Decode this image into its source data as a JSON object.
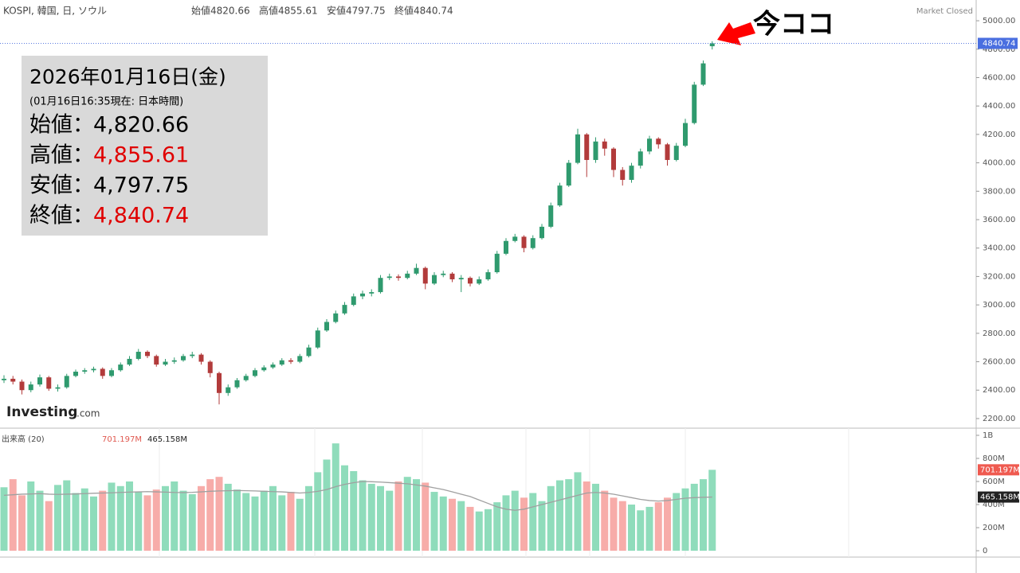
{
  "header": {
    "symbol": "KOSPI, 韓国, 日, ソウル",
    "items": [
      {
        "label": "始値",
        "value": "4820.66"
      },
      {
        "label": "高値",
        "value": "4855.61"
      },
      {
        "label": "安値",
        "value": "4797.75"
      },
      {
        "label": "終値",
        "value": "4840.74"
      }
    ],
    "status": "Market Closed"
  },
  "info_box": {
    "date": "2026年01月16日(金)",
    "note": "(01月16日16:35現在: 日本時間)",
    "rows": [
      {
        "label": "始値：",
        "value": "4,820.66",
        "color": "#000000"
      },
      {
        "label": "高値：",
        "value": "4,855.61",
        "color": "#e00000"
      },
      {
        "label": "安値：",
        "value": "4,797.75",
        "color": "#000000"
      },
      {
        "label": "終値：",
        "value": "4,840.74",
        "color": "#e00000"
      }
    ]
  },
  "annotation": "今ココ",
  "logo": {
    "main": "Investing",
    "suffix": ".com"
  },
  "chart_data": [
    {
      "type": "candlestick",
      "up_color": "#2f9a6e",
      "down_color": "#b23b3b",
      "current_value": 4840.74,
      "ylim": [
        2138,
        5146
      ],
      "yticks": [
        {
          "value": 2200,
          "label": "2200.00"
        },
        {
          "value": 2400,
          "label": "2400.00"
        },
        {
          "value": 2600,
          "label": "2600.00"
        },
        {
          "value": 2800,
          "label": "2800.00"
        },
        {
          "value": 3000,
          "label": "3000.00"
        },
        {
          "value": 3200,
          "label": "3200.00"
        },
        {
          "value": 3400,
          "label": "3400.00"
        },
        {
          "value": 3600,
          "label": "3600.00"
        },
        {
          "value": 3800,
          "label": "3800.00"
        },
        {
          "value": 4000,
          "label": "4000.00"
        },
        {
          "value": 4200,
          "label": "4200.00"
        },
        {
          "value": 4400,
          "label": "4400.00"
        },
        {
          "value": 4600,
          "label": "4600.00"
        },
        {
          "value": 4800,
          "label": "4800.00"
        },
        {
          "value": 5000,
          "label": "5000.00"
        }
      ],
      "open": [
        2470,
        2480,
        2460,
        2400,
        2440,
        2490,
        2410,
        2420,
        2500,
        2530,
        2540,
        2550,
        2500,
        2540,
        2580,
        2620,
        2670,
        2640,
        2580,
        2600,
        2610,
        2640,
        2650,
        2600,
        2520,
        2380,
        2420,
        2470,
        2500,
        2540,
        2560,
        2580,
        2610,
        2600,
        2640,
        2700,
        2820,
        2880,
        2940,
        3000,
        3060,
        3080,
        3090,
        3190,
        3200,
        3190,
        3220,
        3260,
        3150,
        3210,
        3220,
        3180,
        3190,
        3150,
        3180,
        3230,
        3360,
        3450,
        3480,
        3400,
        3470,
        3550,
        3700,
        3840,
        4000,
        4200,
        4020,
        4150,
        4100,
        3950,
        3880,
        3980,
        4080,
        4170,
        4130,
        4020,
        4120,
        4280,
        4550,
        4820.66
      ],
      "high": [
        2505,
        2500,
        2475,
        2460,
        2510,
        2500,
        2440,
        2515,
        2545,
        2555,
        2565,
        2560,
        2555,
        2595,
        2640,
        2690,
        2680,
        2650,
        2620,
        2630,
        2655,
        2670,
        2660,
        2610,
        2530,
        2440,
        2485,
        2515,
        2555,
        2575,
        2595,
        2625,
        2625,
        2655,
        2720,
        2840,
        2900,
        2960,
        3020,
        3080,
        3100,
        3110,
        3210,
        3220,
        3215,
        3240,
        3290,
        3270,
        3230,
        3240,
        3230,
        3210,
        3200,
        3200,
        3250,
        3380,
        3470,
        3500,
        3490,
        3490,
        3570,
        3720,
        3860,
        4020,
        4240,
        4210,
        4180,
        4170,
        4110,
        3970,
        4000,
        4100,
        4190,
        4180,
        4140,
        4140,
        4310,
        4570,
        4720,
        4855.61
      ],
      "low": [
        2450,
        2440,
        2370,
        2385,
        2425,
        2395,
        2390,
        2410,
        2490,
        2515,
        2525,
        2480,
        2490,
        2530,
        2570,
        2610,
        2625,
        2565,
        2570,
        2585,
        2600,
        2625,
        2580,
        2490,
        2300,
        2360,
        2410,
        2460,
        2490,
        2530,
        2550,
        2570,
        2585,
        2590,
        2630,
        2690,
        2810,
        2870,
        2930,
        2990,
        3040,
        3060,
        3080,
        3175,
        3170,
        3180,
        3210,
        3110,
        3140,
        3195,
        3160,
        3090,
        3130,
        3140,
        3170,
        3220,
        3350,
        3440,
        3370,
        3390,
        3460,
        3540,
        3690,
        3830,
        3990,
        3900,
        4000,
        4050,
        3900,
        3840,
        3860,
        3960,
        4060,
        4100,
        3980,
        4010,
        4110,
        4270,
        4540,
        4797.75
      ],
      "close": [
        2480,
        2460,
        2400,
        2440,
        2490,
        2410,
        2420,
        2500,
        2530,
        2540,
        2550,
        2500,
        2540,
        2580,
        2620,
        2670,
        2640,
        2580,
        2600,
        2610,
        2640,
        2650,
        2600,
        2520,
        2380,
        2420,
        2470,
        2500,
        2540,
        2560,
        2580,
        2610,
        2600,
        2640,
        2700,
        2820,
        2880,
        2940,
        3000,
        3060,
        3080,
        3090,
        3190,
        3200,
        3190,
        3220,
        3260,
        3150,
        3210,
        3220,
        3180,
        3190,
        3150,
        3180,
        3230,
        3360,
        3450,
        3480,
        3400,
        3470,
        3550,
        3700,
        3840,
        4000,
        4200,
        4020,
        4150,
        4100,
        3950,
        3880,
        3980,
        4080,
        4170,
        4130,
        4020,
        4120,
        4280,
        4550,
        4700,
        4840.74
      ]
    },
    {
      "type": "bar",
      "title": "出来高 (20)",
      "up_color": "#8fdcbb",
      "down_color": "#f7aca9",
      "ma_color": "#a0a0a0",
      "ylim": [
        -55,
        1062
      ],
      "yticks": [
        0,
        {
          "value": 200,
          "label": "200M"
        },
        {
          "value": 400,
          "label": "400M"
        },
        {
          "value": 600,
          "label": "600M"
        },
        {
          "value": 800,
          "label": "800M"
        },
        {
          "value": 1000,
          "label": "1B"
        }
      ],
      "last_value": {
        "value": 701.197,
        "label": "701.197M"
      },
      "last_ma": {
        "value": 465.158,
        "label": "465.158M"
      },
      "values": [
        550,
        620,
        480,
        600,
        520,
        430,
        570,
        610,
        500,
        540,
        470,
        520,
        590,
        560,
        600,
        510,
        480,
        530,
        560,
        600,
        520,
        490,
        560,
        620,
        640,
        580,
        530,
        500,
        470,
        520,
        560,
        480,
        510,
        450,
        560,
        680,
        790,
        930,
        740,
        690,
        610,
        580,
        560,
        520,
        600,
        640,
        620,
        590,
        510,
        470,
        450,
        430,
        380,
        340,
        360,
        420,
        480,
        520,
        460,
        500,
        430,
        560,
        610,
        620,
        680,
        600,
        580,
        520,
        460,
        430,
        400,
        350,
        380,
        420,
        460,
        500,
        540,
        580,
        620,
        701.197
      ],
      "ma_values": [
        480,
        485,
        490,
        492,
        495,
        490,
        488,
        490,
        492,
        495,
        498,
        500,
        502,
        505,
        508,
        510,
        512,
        510,
        508,
        505,
        504,
        506,
        510,
        515,
        518,
        520,
        522,
        520,
        518,
        515,
        512,
        510,
        505,
        500,
        505,
        515,
        530,
        555,
        575,
        590,
        600,
        598,
        595,
        590,
        585,
        580,
        570,
        560,
        545,
        530,
        510,
        490,
        470,
        440,
        410,
        380,
        360,
        350,
        360,
        380,
        400,
        420,
        440,
        460,
        480,
        500,
        505,
        500,
        490,
        475,
        460,
        445,
        435,
        430,
        435,
        445,
        455,
        460,
        463,
        465.158
      ]
    }
  ]
}
